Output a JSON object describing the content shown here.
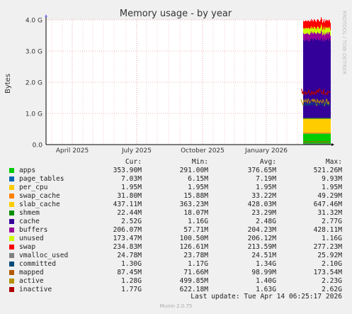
{
  "chart_data": {
    "type": "area",
    "title": "Memory usage - by year",
    "ylabel": "Bytes",
    "side_label": "RRDTOOL / TOBI OETIKER",
    "ylim": [
      0,
      4.0
    ],
    "y_unit": "G",
    "y_ticks": [
      "0.0",
      "1.0 G",
      "2.0 G",
      "3.0 G",
      "4.0 G"
    ],
    "x_ticks": [
      "April 2025",
      "July 2025",
      "October 2025",
      "January 2026"
    ],
    "data_window": "2026-03 to 2026-04",
    "series": [
      {
        "name": "apps",
        "color": "#00cc00",
        "cur_G": 0.35
      },
      {
        "name": "page_tables",
        "color": "#0066b3",
        "cur_G": 0.007
      },
      {
        "name": "per_cpu",
        "color": "#ffcc00",
        "cur_G": 0.002
      },
      {
        "name": "swap_cache",
        "color": "#ff8000",
        "cur_G": 0.032
      },
      {
        "name": "slab_cache",
        "color": "#ffcc00",
        "cur_G": 0.437
      },
      {
        "name": "shmem",
        "color": "#008f00",
        "cur_G": 0.022
      },
      {
        "name": "cache",
        "color": "#330099",
        "cur_G": 2.52
      },
      {
        "name": "buffers",
        "color": "#990099",
        "cur_G": 0.206
      },
      {
        "name": "unused",
        "color": "#ccff00",
        "cur_G": 0.173
      },
      {
        "name": "swap",
        "color": "#ff0000",
        "cur_G": 0.235
      }
    ]
  },
  "legend": {
    "headers": {
      "cur": "Cur:",
      "min": "Min:",
      "avg": "Avg:",
      "max": "Max:"
    },
    "rows": [
      {
        "name": "apps",
        "color": "#00cc00",
        "cur": "353.90M",
        "min": "291.00M",
        "avg": "376.65M",
        "max": "521.26M"
      },
      {
        "name": "page_tables",
        "color": "#0066b3",
        "cur": "7.03M",
        "min": "6.15M",
        "avg": "7.19M",
        "max": "9.93M"
      },
      {
        "name": "per_cpu",
        "color": "#ffcc00",
        "cur": "1.95M",
        "min": "1.95M",
        "avg": "1.95M",
        "max": "1.95M"
      },
      {
        "name": "swap_cache",
        "color": "#ff8000",
        "cur": "31.80M",
        "min": "15.88M",
        "avg": "33.22M",
        "max": "49.29M"
      },
      {
        "name": "slab_cache",
        "color": "#ffcc00",
        "cur": "437.11M",
        "min": "363.23M",
        "avg": "428.03M",
        "max": "647.46M"
      },
      {
        "name": "shmem",
        "color": "#008f00",
        "cur": "22.44M",
        "min": "18.07M",
        "avg": "23.29M",
        "max": "31.32M"
      },
      {
        "name": "cache",
        "color": "#330099",
        "cur": "2.52G",
        "min": "1.16G",
        "avg": "2.48G",
        "max": "2.77G"
      },
      {
        "name": "buffers",
        "color": "#990099",
        "cur": "206.07M",
        "min": "57.71M",
        "avg": "204.23M",
        "max": "428.11M"
      },
      {
        "name": "unused",
        "color": "#ccff00",
        "cur": "173.47M",
        "min": "100.50M",
        "avg": "206.12M",
        "max": "1.16G"
      },
      {
        "name": "swap",
        "color": "#ff0000",
        "cur": "234.83M",
        "min": "126.61M",
        "avg": "213.59M",
        "max": "277.23M"
      },
      {
        "name": "vmalloc_used",
        "color": "#808080",
        "cur": "24.78M",
        "min": "23.78M",
        "avg": "24.51M",
        "max": "25.92M"
      },
      {
        "name": "committed",
        "color": "#004c7a",
        "cur": "1.30G",
        "min": "1.17G",
        "avg": "1.34G",
        "max": "2.10G"
      },
      {
        "name": "mapped",
        "color": "#b35a00",
        "cur": "87.45M",
        "min": "71.66M",
        "avg": "98.99M",
        "max": "173.54M"
      },
      {
        "name": "active",
        "color": "#b38f00",
        "cur": "1.28G",
        "min": "499.85M",
        "avg": "1.40G",
        "max": "2.23G"
      },
      {
        "name": "inactive",
        "color": "#b30000",
        "cur": "1.77G",
        "min": "622.18M",
        "avg": "1.63G",
        "max": "2.62G"
      }
    ]
  },
  "last_update": "Last update: Tue Apr 14 06:25:17 2026",
  "footer": "Munin 2.0.75"
}
